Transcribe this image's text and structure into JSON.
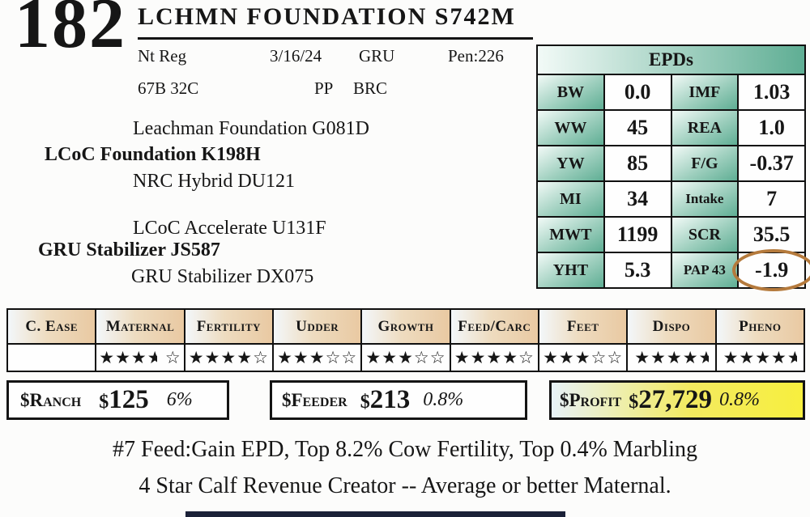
{
  "lot": {
    "number": "182",
    "title": "LCHMN FOUNDATION S742M"
  },
  "info": {
    "registration": "Nt Reg",
    "birth_date": "3/16/24",
    "brand": "GRU",
    "pen": "Pen:226",
    "tattoo": "67B 32C",
    "polled": "PP",
    "ranch": "BRC"
  },
  "pedigree": {
    "sire_line": [
      "Leachman Foundation G081D",
      "LCoC Foundation K198H",
      "NRC Hybrid DU121"
    ],
    "dam_line": [
      "LCoC Accelerate U131F",
      "GRU Stabilizer JS587",
      "GRU Stabilizer DX075"
    ]
  },
  "epds": {
    "title": "EPDs",
    "rows": [
      {
        "l1": "BW",
        "v1": "0.0",
        "l2": "IMF",
        "v2": "1.03"
      },
      {
        "l1": "WW",
        "v1": "45",
        "l2": "REA",
        "v2": "1.0"
      },
      {
        "l1": "YW",
        "v1": "85",
        "l2": "F/G",
        "v2": "-0.37"
      },
      {
        "l1": "MI",
        "v1": "34",
        "l2": "Intake",
        "v2": "7"
      },
      {
        "l1": "MWT",
        "v1": "1199",
        "l2": "SCR",
        "v2": "35.5"
      },
      {
        "l1": "YHT",
        "v1": "5.3",
        "l2": "PAP 43",
        "v2": "-1.9",
        "circled": true
      }
    ]
  },
  "ratings": {
    "columns": [
      {
        "label": "C. Ease",
        "full": 0,
        "half": 0,
        "empty": 0
      },
      {
        "label": "Maternal",
        "full": 3,
        "half": 1,
        "empty": 1,
        "gap_before_empty": true
      },
      {
        "label": "Fertility",
        "full": 4,
        "half": 0,
        "empty": 1
      },
      {
        "label": "Udder",
        "full": 3,
        "half": 0,
        "empty": 2
      },
      {
        "label": "Growth",
        "full": 3,
        "half": 0,
        "empty": 2
      },
      {
        "label": "Feed/Carc",
        "full": 4,
        "half": 0,
        "empty": 1
      },
      {
        "label": "Feet",
        "full": 3,
        "half": 0,
        "empty": 2
      },
      {
        "label": "Dispo",
        "full": 4,
        "half": 1,
        "empty": 0
      },
      {
        "label": "Pheno",
        "full": 4,
        "half": 1,
        "empty": 0
      }
    ],
    "star_full": "★",
    "star_empty": "☆"
  },
  "indexes": [
    {
      "label": "$Ranch",
      "value": "$125",
      "pct": "6%",
      "highlight": false
    },
    {
      "label": "$Feeder",
      "value": "$213",
      "pct": "0.8%",
      "highlight": false
    },
    {
      "label": "$Profit",
      "value": "$27,729",
      "pct": "0.8%",
      "highlight": true
    }
  ],
  "footnotes": [
    "#7 Feed:Gain EPD, Top 8.2% Cow Fertility, Top 0.4% Marbling",
    "4 Star Calf Revenue Creator -- Average or better Maternal."
  ],
  "colors": {
    "epd_teal": "#5fae94",
    "epd_teal_light": "#f2faf7",
    "ratings_tan": "#e9c9a2",
    "profit_yellow": "#f7ef3e",
    "circle_brown": "#b57a3c",
    "bottom_bar_navy": "#1b2138"
  }
}
